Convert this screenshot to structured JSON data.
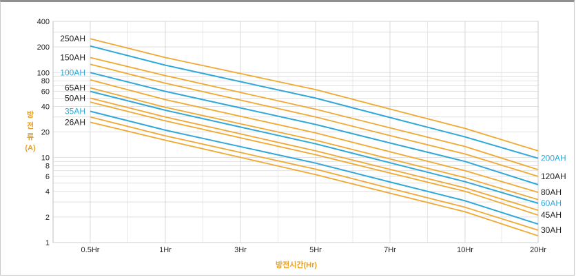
{
  "chart_data": {
    "type": "line",
    "title": "",
    "xlabel": "방전시간(Hr)",
    "ylabel_chars": [
      "방",
      "전",
      "류",
      "(A)"
    ],
    "categories": [
      "0.5Hr",
      "1Hr",
      "3Hr",
      "5Hr",
      "7Hr",
      "10Hr",
      "20Hr"
    ],
    "yscale": "log",
    "ylim": [
      1,
      400
    ],
    "yticks": [
      1,
      2,
      4,
      6,
      8,
      10,
      20,
      40,
      60,
      80,
      100,
      200,
      400
    ],
    "grid": true,
    "colors": {
      "orange": "#f0a830",
      "blue": "#2fa8d8",
      "axis_label": "#e8a020"
    },
    "series": [
      {
        "name": "250AH",
        "color": "orange",
        "values": [
          250,
          150,
          null,
          63,
          null,
          22,
          12
        ]
      },
      {
        "name": "200AH",
        "color": "blue",
        "values": [
          205,
          122,
          null,
          50,
          null,
          17.5,
          9.8
        ]
      },
      {
        "name": "150AH",
        "color": "orange",
        "values": [
          150,
          92,
          null,
          37,
          null,
          13.5,
          7.2
        ]
      },
      {
        "name": "120AH",
        "color": "orange",
        "values": [
          125,
          75,
          null,
          30,
          null,
          11,
          6
        ]
      },
      {
        "name": "100AH",
        "color": "blue",
        "values": [
          100,
          60,
          null,
          24.5,
          null,
          9,
          4.8
        ]
      },
      {
        "name": "80AH",
        "color": "orange",
        "values": [
          82,
          48,
          null,
          19.5,
          null,
          7,
          3.9
        ]
      },
      {
        "name": "65AH",
        "color": "orange",
        "values": [
          66,
          39,
          null,
          16,
          null,
          5.8,
          3.2
        ]
      },
      {
        "name": "60AH",
        "color": "blue",
        "values": [
          60,
          36,
          null,
          14.5,
          null,
          5.2,
          2.9
        ]
      },
      {
        "name": "50AH",
        "color": "orange",
        "values": [
          50,
          30,
          null,
          12,
          null,
          4.4,
          2.4
        ]
      },
      {
        "name": "45AH",
        "color": "orange",
        "values": [
          45,
          27,
          null,
          10.8,
          null,
          4,
          2.1
        ]
      },
      {
        "name": "35AH",
        "color": "blue",
        "values": [
          35,
          21,
          null,
          8.6,
          null,
          3.1,
          1.65
        ]
      },
      {
        "name": "30AH",
        "color": "orange",
        "values": [
          30,
          18,
          null,
          7.3,
          null,
          2.6,
          1.4
        ]
      },
      {
        "name": "26AH",
        "color": "orange",
        "values": [
          26,
          16,
          null,
          6.3,
          null,
          2.3,
          1.2
        ]
      }
    ],
    "left_labels": [
      "250AH",
      "150AH",
      "100AH",
      "65AH",
      "50AH",
      "35AH",
      "26AH"
    ],
    "right_labels": [
      "200AH",
      "120AH",
      "80AH",
      "60AH",
      "45AH",
      "30AH"
    ]
  }
}
